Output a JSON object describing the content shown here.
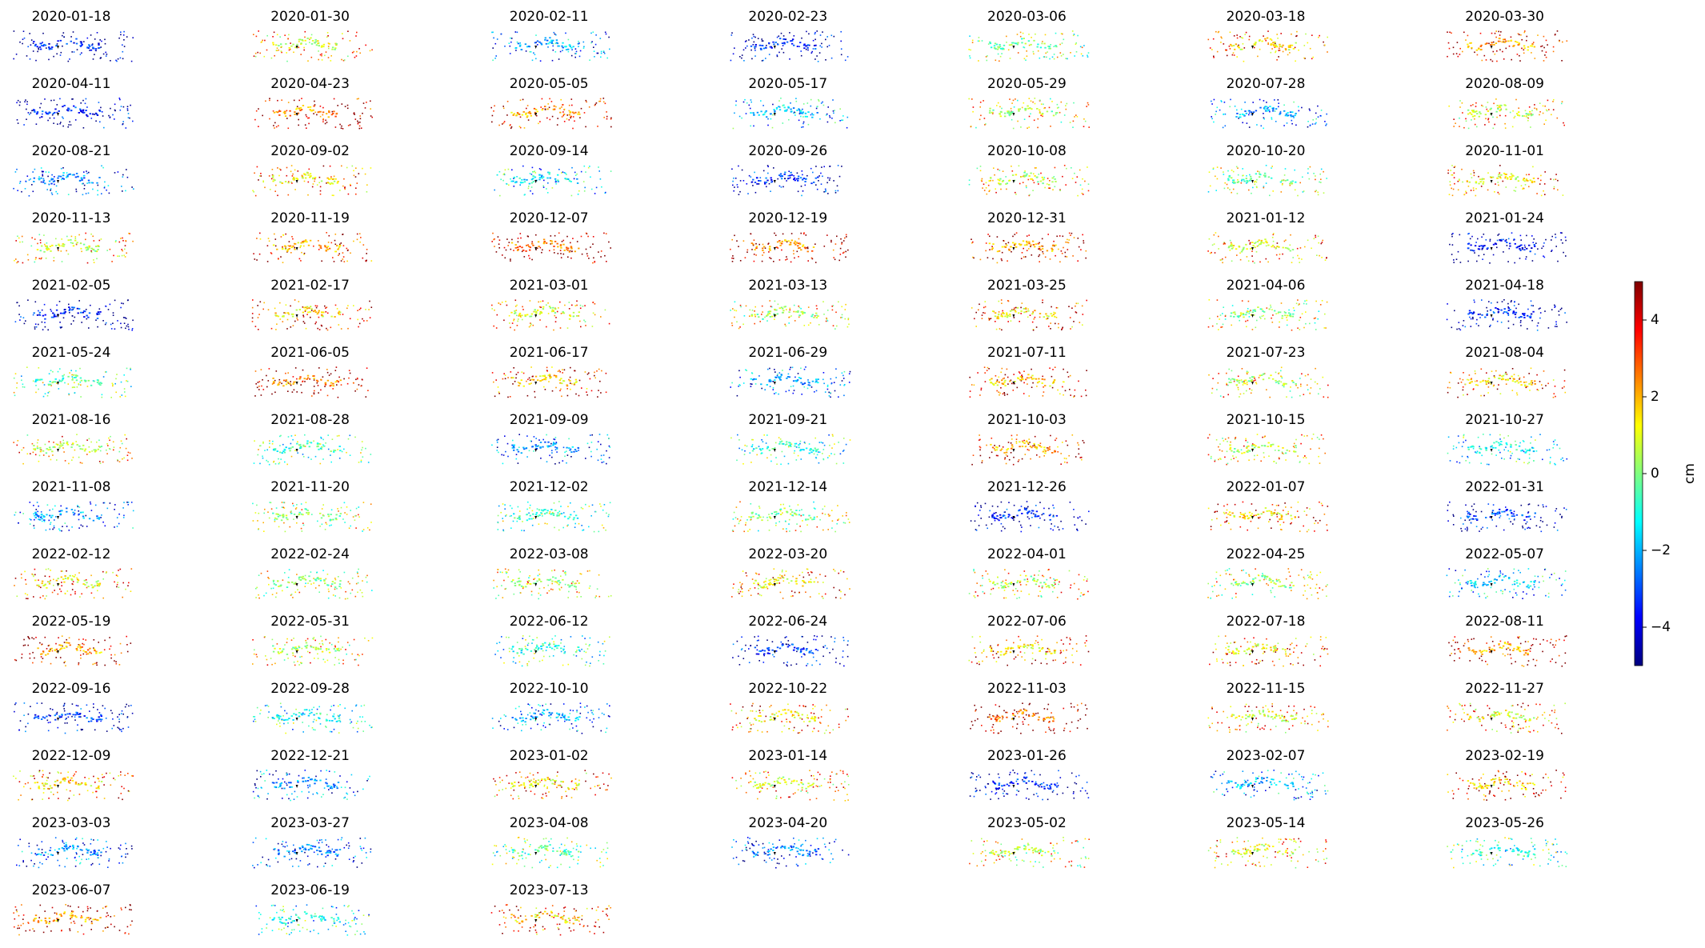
{
  "chart_data": {
    "type": "map-grid",
    "panel_titles": [
      "2020-01-18",
      "2020-01-30",
      "2020-02-11",
      "2020-02-23",
      "2020-03-06",
      "2020-03-18",
      "2020-03-30",
      "2020-04-11",
      "2020-04-23",
      "2020-05-05",
      "2020-05-17",
      "2020-05-29",
      "2020-07-28",
      "2020-08-09",
      "2020-08-21",
      "2020-09-02",
      "2020-09-14",
      "2020-09-26",
      "2020-10-08",
      "2020-10-20",
      "2020-11-01",
      "2020-11-13",
      "2020-11-19",
      "2020-12-07",
      "2020-12-19",
      "2020-12-31",
      "2021-01-12",
      "2021-01-24",
      "2021-02-05",
      "2021-02-17",
      "2021-03-01",
      "2021-03-13",
      "2021-03-25",
      "2021-04-06",
      "2021-04-18",
      "2021-05-24",
      "2021-06-05",
      "2021-06-17",
      "2021-06-29",
      "2021-07-11",
      "2021-07-23",
      "2021-08-04",
      "2021-08-16",
      "2021-08-28",
      "2021-09-09",
      "2021-09-21",
      "2021-10-03",
      "2021-10-15",
      "2021-10-27",
      "2021-11-08",
      "2021-11-20",
      "2021-12-02",
      "2021-12-14",
      "2021-12-26",
      "2022-01-07",
      "2022-01-31",
      "2022-02-12",
      "2022-02-24",
      "2022-03-08",
      "2022-03-20",
      "2022-04-01",
      "2022-04-25",
      "2022-05-07",
      "2022-05-19",
      "2022-05-31",
      "2022-06-12",
      "2022-06-24",
      "2022-07-06",
      "2022-07-18",
      "2022-08-11",
      "2022-09-16",
      "2022-09-28",
      "2022-10-10",
      "2022-10-22",
      "2022-11-03",
      "2022-11-15",
      "2022-11-27",
      "2022-12-09",
      "2022-12-21",
      "2023-01-02",
      "2023-01-14",
      "2023-01-26",
      "2023-02-07",
      "2023-02-19",
      "2023-03-03",
      "2023-03-27",
      "2023-04-08",
      "2023-04-20",
      "2023-05-02",
      "2023-05-14",
      "2023-05-26",
      "2023-06-07",
      "2023-06-19",
      "2023-07-13"
    ],
    "colorbar": {
      "label": "cm",
      "colormap": "jet",
      "ylim": [
        -5,
        5
      ],
      "yticks": [
        {
          "value": -4,
          "label": "−4"
        },
        {
          "value": -2,
          "label": "−2"
        },
        0,
        2,
        4
      ]
    }
  }
}
